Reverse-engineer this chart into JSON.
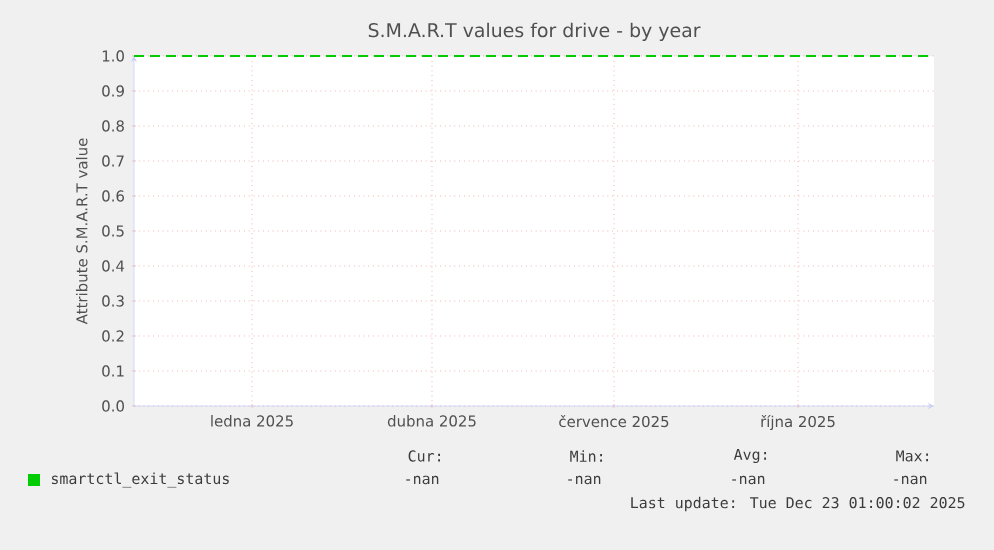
{
  "chart_data": {
    "type": "line",
    "title": "S.M.A.R.T values for drive - by year",
    "ylabel": "Attribute S.M.A.R.T value",
    "xlim": [
      "2024-11-18",
      "2025-12-23"
    ],
    "xticks": [
      {
        "value": "2025-01-16",
        "label": "ledna 2025"
      },
      {
        "value": "2025-04-16",
        "label": "dubna 2025"
      },
      {
        "value": "2025-07-16",
        "label": "července 2025"
      },
      {
        "value": "2025-10-16",
        "label": "října 2025"
      }
    ],
    "ylim": [
      0,
      1
    ],
    "yticks": [
      {
        "value": 0,
        "label": "0.0"
      },
      {
        "value": 0.1,
        "label": "0.1"
      },
      {
        "value": 0.2,
        "label": "0.2"
      },
      {
        "value": 0.3,
        "label": "0.3"
      },
      {
        "value": 0.4,
        "label": "0.4"
      },
      {
        "value": 0.5,
        "label": "0.5"
      },
      {
        "value": 0.6,
        "label": "0.6"
      },
      {
        "value": 0.7,
        "label": "0.7"
      },
      {
        "value": 0.8,
        "label": "0.8"
      },
      {
        "value": 0.9,
        "label": "0.9"
      },
      {
        "value": 1,
        "label": "1.0"
      }
    ],
    "grid": true,
    "legend": "bottom",
    "line_style": "dashed",
    "marker": "none",
    "series": [
      {
        "name": "smartctl_exit_status",
        "color": "#00cc00",
        "x": [
          "2024-11-18",
          "2025-12-23"
        ],
        "values": [
          1.0,
          1.0
        ]
      }
    ],
    "annotations": [
      "Cur:",
      "-nan",
      "Min:",
      "-nan",
      "Avg:",
      "-nan",
      "Max:",
      "-nan",
      "Last update: Tue Dec 23 01:00:02 2025"
    ]
  }
}
